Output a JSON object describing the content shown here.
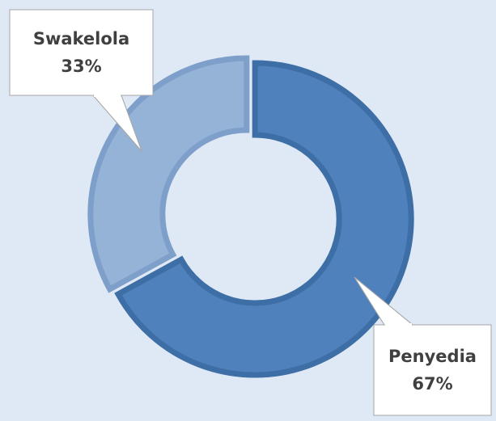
{
  "chart_data": {
    "type": "donut",
    "categories": [
      "Penyedia",
      "Swakelola"
    ],
    "values": [
      67,
      33
    ],
    "value_labels": [
      "67%",
      "33%"
    ],
    "colors": [
      "#4f81bd",
      "#95b3d7"
    ],
    "stroke_colors": [
      "#3e6ea6",
      "#7d9fc9"
    ]
  }
}
